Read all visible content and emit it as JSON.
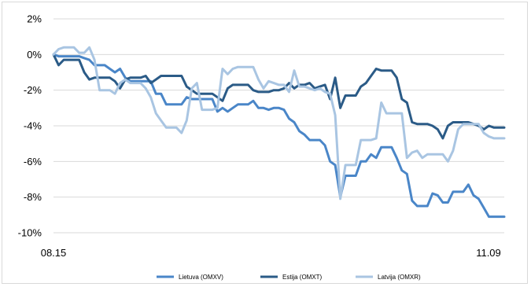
{
  "chart_data": {
    "type": "line",
    "title": "",
    "xlabel": "",
    "ylabel": "",
    "x_ticks": [
      "08.15",
      "11.09"
    ],
    "y_ticks": [
      "2%",
      "0%",
      "-2%",
      "-4%",
      "-6%",
      "-8%",
      "-10%"
    ],
    "y_tick_values": [
      2,
      0,
      -2,
      -4,
      -6,
      -8,
      -10
    ],
    "ylim": [
      -10,
      2
    ],
    "grid": "horizontal",
    "legend_position": "bottom",
    "series": [
      {
        "name": "Lietuva (OMXV)",
        "color": "#4a86c8",
        "values": [
          0,
          -0.1,
          -0.1,
          -0.1,
          -0.1,
          -0.1,
          -0.2,
          -0.3,
          -0.6,
          -0.6,
          -0.6,
          -0.8,
          -1.0,
          -0.8,
          -1.3,
          -1.5,
          -1.5,
          -1.5,
          -1.5,
          -1.5,
          -2.2,
          -2.2,
          -2.8,
          -2.8,
          -2.8,
          -2.8,
          -2.4,
          -2.5,
          -2.5,
          -2.5,
          -2.5,
          -2.5,
          -3.2,
          -3.0,
          -3.2,
          -3.0,
          -2.8,
          -2.8,
          -2.8,
          -2.6,
          -3.0,
          -3.0,
          -3.1,
          -3.0,
          -3.0,
          -3.1,
          -3.6,
          -3.8,
          -4.3,
          -4.5,
          -4.8,
          -4.8,
          -4.8,
          -5.1,
          -6.0,
          -6.2,
          -8.0,
          -6.8,
          -6.8,
          -6.8,
          -6.0,
          -6.0,
          -5.6,
          -5.8,
          -5.2,
          -5.2,
          -5.2,
          -5.8,
          -6.5,
          -6.7,
          -8.2,
          -8.5,
          -8.5,
          -8.5,
          -7.8,
          -7.9,
          -8.3,
          -8.3,
          -7.7,
          -7.7,
          -7.7,
          -7.3,
          -7.9,
          -8.1,
          -8.6,
          -9.1,
          -9.1,
          -9.1,
          -9.1
        ]
      },
      {
        "name": "Estija (OMXT)",
        "color": "#2b5b87",
        "values": [
          0,
          -0.6,
          -0.3,
          -0.3,
          -0.3,
          -0.3,
          -1.0,
          -1.4,
          -1.3,
          -1.3,
          -1.3,
          -1.3,
          -1.5,
          -1.9,
          -1.4,
          -1.3,
          -1.3,
          -1.3,
          -1.2,
          -1.6,
          -1.4,
          -1.2,
          -1.2,
          -1.2,
          -1.2,
          -1.2,
          -1.8,
          -2.0,
          -2.2,
          -2.2,
          -2.2,
          -2.2,
          -2.4,
          -2.6,
          -1.9,
          -1.7,
          -1.7,
          -1.7,
          -1.7,
          -2.0,
          -2.1,
          -2.1,
          -2.1,
          -2.0,
          -2.0,
          -1.9,
          -1.6,
          -1.9,
          -1.7,
          -1.7,
          -1.6,
          -1.9,
          -1.8,
          -1.7,
          -2.5,
          -1.3,
          -3.0,
          -2.3,
          -2.3,
          -2.3,
          -1.8,
          -1.6,
          -1.2,
          -0.8,
          -0.9,
          -0.9,
          -0.9,
          -1.3,
          -2.5,
          -2.7,
          -3.8,
          -3.9,
          -3.9,
          -3.9,
          -4.0,
          -4.2,
          -4.7,
          -4.0,
          -3.8,
          -3.8,
          -3.8,
          -3.8,
          -3.9,
          -4.0,
          -4.2,
          -4.0,
          -4.1,
          -4.1,
          -4.1
        ]
      },
      {
        "name": "Latvija (OMXR)",
        "color": "#a9c5e2",
        "values": [
          0,
          0.3,
          0.4,
          0.4,
          0.4,
          0.1,
          0.1,
          0.4,
          -0.3,
          -2.0,
          -2.0,
          -2.0,
          -2.2,
          -1.6,
          -1.4,
          -1.6,
          -1.6,
          -1.6,
          -1.9,
          -2.4,
          -3.3,
          -3.7,
          -4.1,
          -4.1,
          -4.1,
          -4.4,
          -3.7,
          -1.9,
          -1.6,
          -3.1,
          -3.1,
          -3.1,
          -3.0,
          -0.8,
          -1.1,
          -0.8,
          -0.7,
          -0.7,
          -0.7,
          -0.7,
          -1.4,
          -1.9,
          -1.5,
          -1.6,
          -1.7,
          -1.7,
          -2.1,
          -0.9,
          -1.8,
          -1.8,
          -1.9,
          -2.0,
          -1.9,
          -2.1,
          -2.2,
          -3.4,
          -8.1,
          -6.2,
          -6.2,
          -6.2,
          -4.8,
          -4.8,
          -4.8,
          -4.7,
          -2.7,
          -3.3,
          -3.3,
          -3.3,
          -3.3,
          -5.8,
          -5.5,
          -5.4,
          -5.8,
          -5.6,
          -5.6,
          -5.6,
          -5.6,
          -6.0,
          -5.4,
          -4.2,
          -3.9,
          -3.9,
          -3.9,
          -3.9,
          -4.4,
          -4.6,
          -4.7,
          -4.7,
          -4.7
        ]
      }
    ]
  }
}
